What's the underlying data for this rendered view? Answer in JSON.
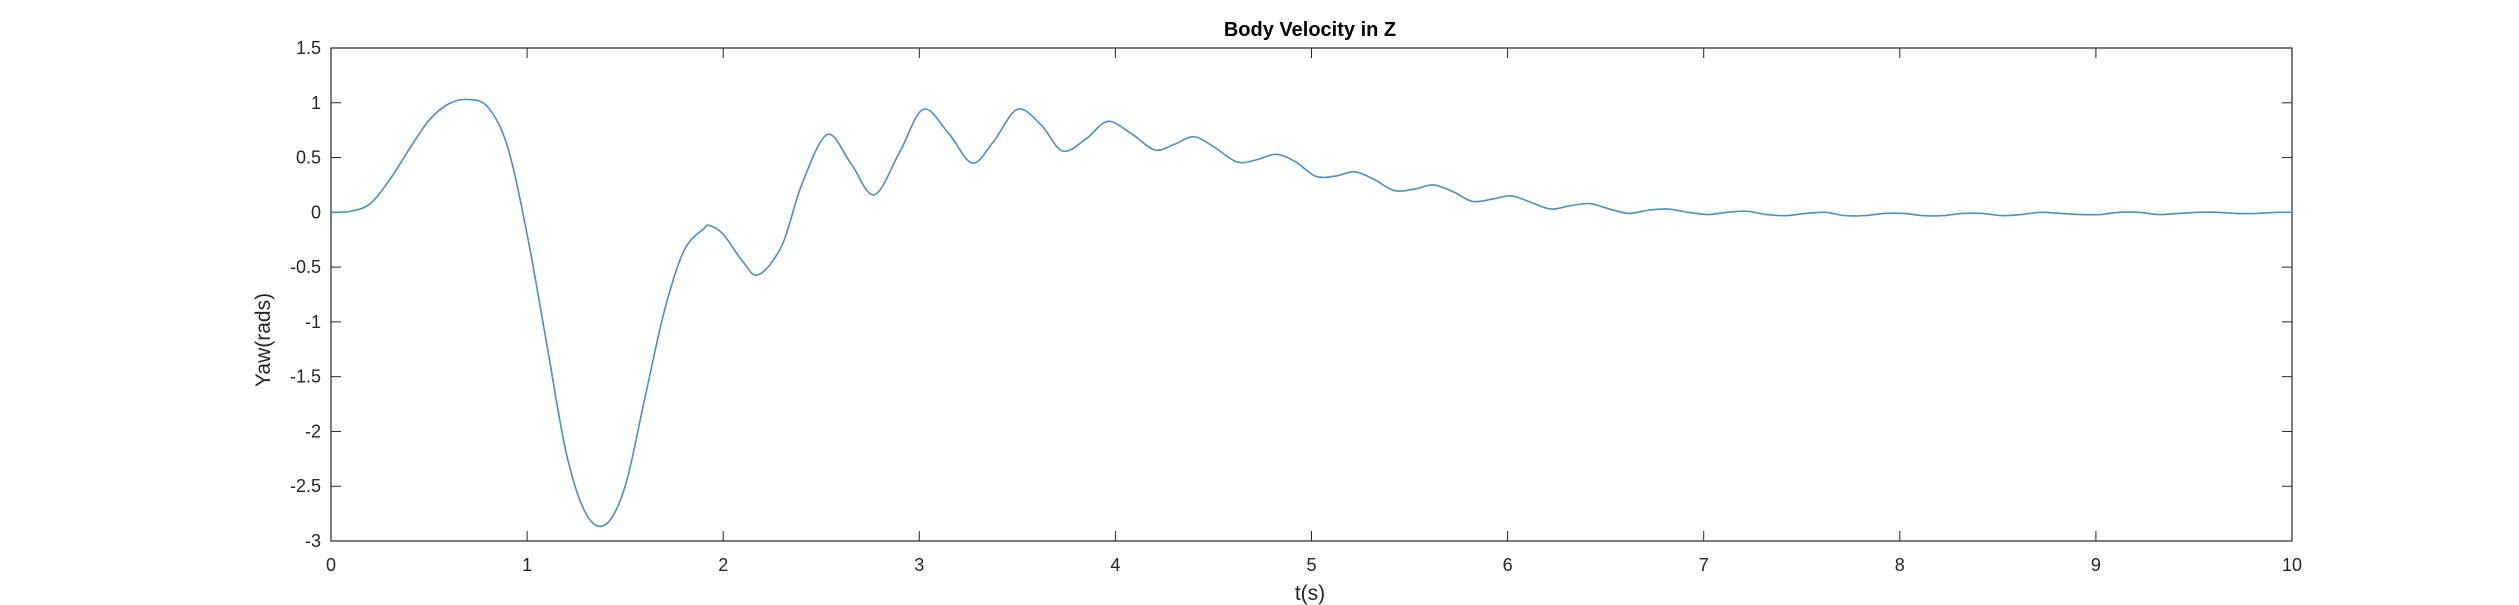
{
  "chart_data": {
    "type": "line",
    "title": "Body Velocity in Z",
    "xlabel": "t(s)",
    "ylabel": "Yaw(rads)",
    "xlim": [
      0,
      10
    ],
    "ylim": [
      -3,
      1.5
    ],
    "xticks": [
      "0",
      "1",
      "2",
      "3",
      "4",
      "5",
      "6",
      "7",
      "8",
      "9",
      "10"
    ],
    "yticks": [
      "1.5",
      "1",
      "0.5",
      "0",
      "-0.5",
      "-1",
      "-1.5",
      "-2",
      "-2.5",
      "-3"
    ],
    "grid": false,
    "line_color": "#4a8fc5",
    "series": [
      {
        "x": [
          0,
          0.1,
          0.2,
          0.3,
          0.4,
          0.5,
          0.6,
          0.7,
          0.8,
          0.9,
          1.0,
          1.1,
          1.2,
          1.3,
          1.4,
          1.5,
          1.6,
          1.7,
          1.8,
          1.9,
          1.93,
          2.0,
          2.1,
          2.18,
          2.3,
          2.4,
          2.53,
          2.65,
          2.77,
          2.9,
          3.02,
          3.15,
          3.27,
          3.38,
          3.5,
          3.62,
          3.73,
          3.85,
          3.96,
          4.08,
          4.2,
          4.3,
          4.4,
          4.5,
          4.62,
          4.72,
          4.82,
          4.92,
          5.02,
          5.12,
          5.22,
          5.32,
          5.42,
          5.52,
          5.62,
          5.72,
          5.82,
          5.92,
          6.02,
          6.12,
          6.22,
          6.32,
          6.42,
          6.52,
          6.62,
          6.72,
          6.82,
          6.92,
          7.02,
          7.12,
          7.22,
          7.32,
          7.42,
          7.52,
          7.62,
          7.72,
          7.82,
          7.92,
          8.02,
          8.12,
          8.22,
          8.32,
          8.42,
          8.52,
          8.62,
          8.72,
          8.82,
          8.92,
          9.02,
          9.12,
          9.22,
          9.32,
          9.42,
          9.52,
          9.62,
          9.72,
          9.82,
          9.92,
          10.0
        ],
        "y": [
          0,
          0.01,
          0.08,
          0.3,
          0.58,
          0.84,
          0.99,
          1.03,
          0.96,
          0.6,
          -0.2,
          -1.2,
          -2.2,
          -2.75,
          -2.85,
          -2.5,
          -1.7,
          -0.9,
          -0.35,
          -0.15,
          -0.12,
          -0.2,
          -0.45,
          -0.57,
          -0.3,
          0.25,
          0.71,
          0.45,
          0.16,
          0.55,
          0.94,
          0.72,
          0.45,
          0.65,
          0.94,
          0.8,
          0.56,
          0.67,
          0.83,
          0.72,
          0.57,
          0.62,
          0.69,
          0.6,
          0.46,
          0.48,
          0.53,
          0.46,
          0.33,
          0.33,
          0.37,
          0.3,
          0.2,
          0.21,
          0.25,
          0.19,
          0.1,
          0.12,
          0.15,
          0.09,
          0.03,
          0.06,
          0.08,
          0.03,
          -0.01,
          0.02,
          0.03,
          0.0,
          -0.02,
          0.0,
          0.01,
          -0.02,
          -0.03,
          -0.01,
          0.0,
          -0.03,
          -0.03,
          -0.01,
          -0.01,
          -0.03,
          -0.03,
          -0.01,
          -0.01,
          -0.03,
          -0.02,
          0.0,
          -0.01,
          -0.02,
          -0.02,
          0.0,
          0.0,
          -0.02,
          -0.01,
          0.0,
          0.0,
          -0.01,
          -0.01,
          0.0,
          0.0
        ]
      }
    ]
  }
}
